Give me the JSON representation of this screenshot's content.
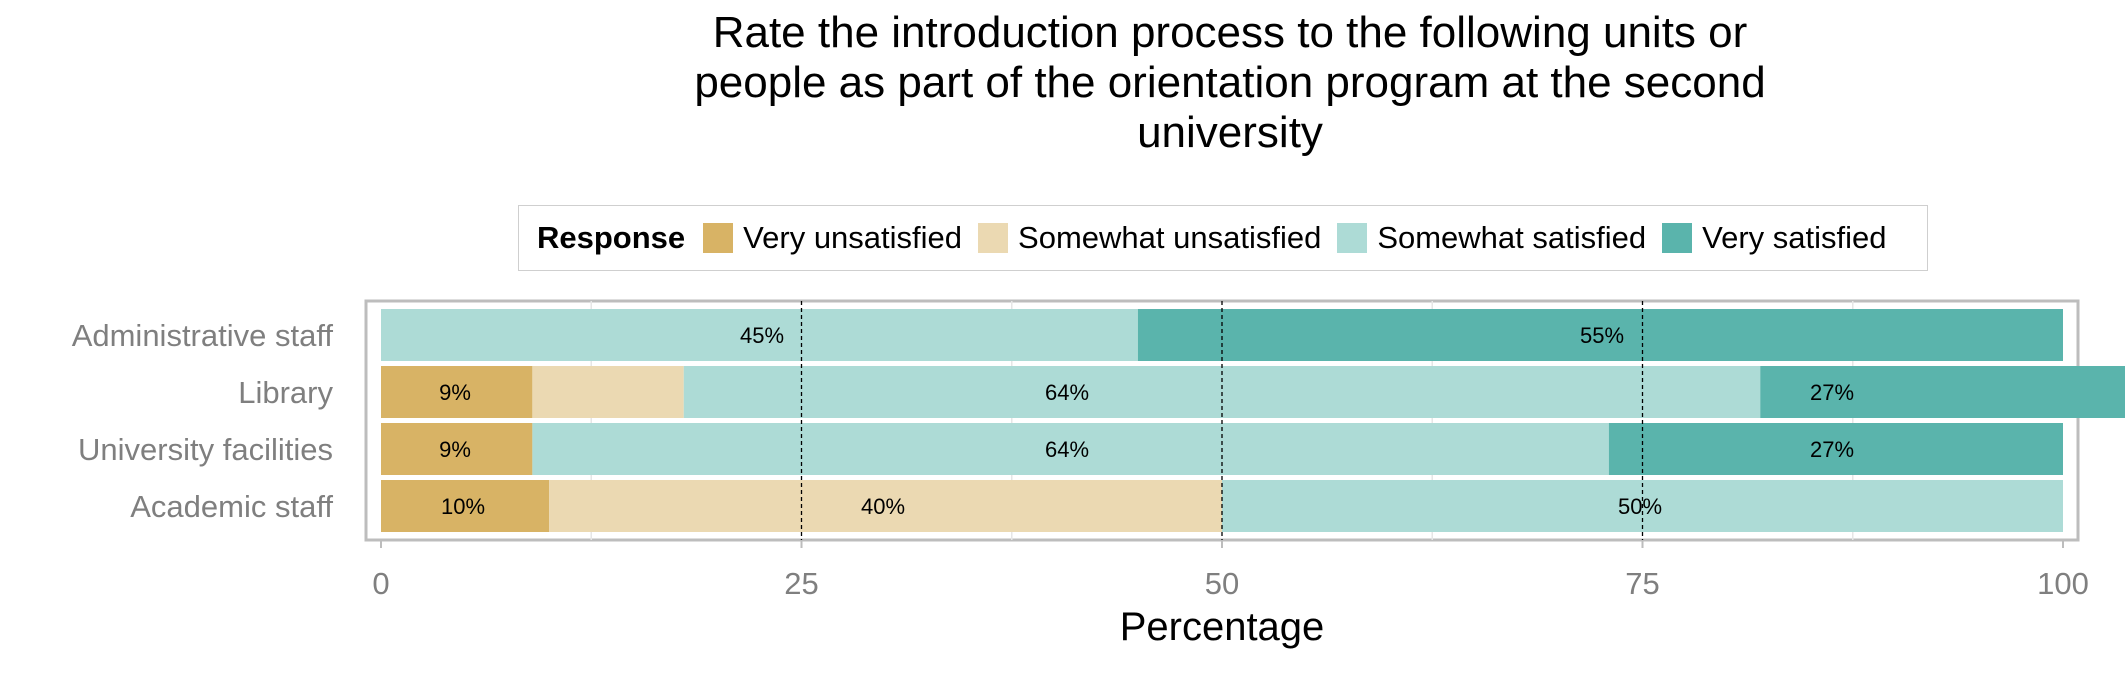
{
  "chart_data": {
    "type": "bar",
    "orientation": "horizontal",
    "stacked": true,
    "title": "Rate the introduction process to the following units or people as part of the orientation program at the second university",
    "title_lines": [
      "Rate the introduction process to the following units or",
      "people as part of the orientation program at the second",
      "university"
    ],
    "xlabel": "Percentage",
    "ylabel": "",
    "xlim": [
      0,
      100
    ],
    "x_ticks": [
      0,
      25,
      50,
      75,
      100
    ],
    "x_tick_labels": [
      "0",
      "25",
      "50",
      "75",
      "100"
    ],
    "legend_title": "Response",
    "legend_position": "top",
    "grid": "dashed vertical lines at 25, 50, 75",
    "categories": [
      "Administrative staff",
      "Library",
      "University facilities",
      "Academic staff"
    ],
    "series": [
      {
        "name": "Very unsatisfied",
        "color": "#D8B365",
        "values": [
          0,
          9,
          9,
          10
        ]
      },
      {
        "name": "Somewhat unsatisfied",
        "color": "#EBD9B2",
        "values": [
          0,
          9,
          0,
          40
        ]
      },
      {
        "name": "Somewhat satisfied",
        "color": "#ADDBD6",
        "values": [
          45,
          64,
          64,
          50
        ]
      },
      {
        "name": "Very satisfied",
        "color": "#5AB4AC",
        "values": [
          55,
          27,
          27,
          0
        ]
      }
    ],
    "data_labels": [
      [
        "",
        "",
        "45%",
        "55%"
      ],
      [
        "9%",
        "",
        "64%",
        "27%"
      ],
      [
        "9%",
        "",
        "64%",
        "27%"
      ],
      [
        "10%",
        "40%",
        "50%",
        ""
      ]
    ]
  }
}
